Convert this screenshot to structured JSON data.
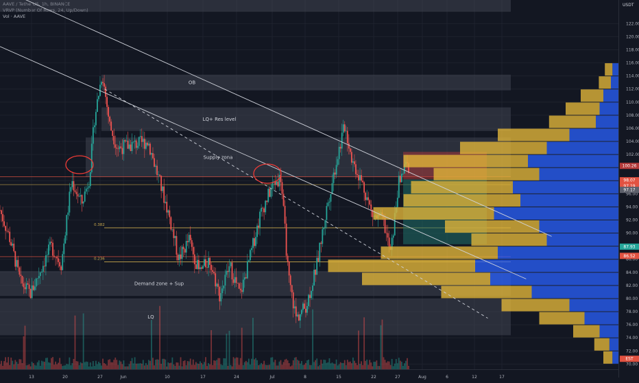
{
  "header": {
    "symbol_line": "AAVE / TetherUS, 1h, BINANCE",
    "indicator_1": "VRVP (Number Of Rows, 24, Up/Down)",
    "indicator_2": "Vol · AAVE"
  },
  "price_axis": {
    "currency": "USDT",
    "badges": [
      {
        "label": "100.26",
        "price": 100.26,
        "color": "#b33a3a"
      },
      {
        "label": "98.07",
        "price": 98.07,
        "color": "#e15241"
      },
      {
        "label": "97.19",
        "price": 97.19,
        "color": "#e15241"
      },
      {
        "label": "97.17",
        "price": 96.6,
        "color": "#5d606b"
      },
      {
        "label": "87.93",
        "price": 87.93,
        "color": "#26a69a"
      },
      {
        "label": "86.52",
        "price": 86.52,
        "color": "#e15241"
      },
      {
        "label": "EST",
        "price": 70.8,
        "color": "#e15241"
      }
    ]
  },
  "chart_data": {
    "type": "candlestick",
    "price_ticks": [
      70,
      72,
      74,
      76,
      78,
      80,
      82,
      84,
      86,
      88,
      90,
      92,
      94,
      96,
      98,
      100,
      102,
      104,
      106,
      108,
      110,
      112,
      114,
      116,
      118,
      120,
      122
    ],
    "ylim": [
      69.2,
      125.6
    ],
    "time_ticks": [
      "13",
      "20",
      "27",
      "Jun",
      "10",
      "17",
      "24",
      "Jul",
      "8",
      "15",
      "22",
      "27",
      "Aug",
      "6",
      "12",
      "17"
    ],
    "zones": [
      {
        "label": "",
        "top": 125.6,
        "bottom": 123.8
      },
      {
        "label": "OB",
        "top": 114.2,
        "bottom": 111.8
      },
      {
        "label": "LQ+ Res level",
        "top": 109.2,
        "bottom": 105.6
      },
      {
        "label": "Supply zona",
        "top": 104.6,
        "bottom": 98.6
      },
      {
        "label": "Demand zone + Sup",
        "top": 84.2,
        "bottom": 80.4
      },
      {
        "label": "LQ",
        "top": 80.0,
        "bottom": 74.4
      }
    ],
    "fib_levels": [
      {
        "label": "0.382",
        "price": 90.8
      },
      {
        "label": "0.236",
        "price": 85.6
      }
    ],
    "horizontal_lines": [
      {
        "price": 98.6,
        "color": "#e15241"
      },
      {
        "price": 97.4,
        "color": "#c9a84c"
      },
      {
        "price": 86.4,
        "color": "#e15241"
      }
    ],
    "price_series": [
      {
        "t": 0.0,
        "p": 93.5
      },
      {
        "t": 0.02,
        "p": 89.0
      },
      {
        "t": 0.04,
        "p": 82.5
      },
      {
        "t": 0.06,
        "p": 80.8
      },
      {
        "t": 0.08,
        "p": 84.5
      },
      {
        "t": 0.1,
        "p": 88.0
      },
      {
        "t": 0.12,
        "p": 85.2
      },
      {
        "t": 0.14,
        "p": 98.0
      },
      {
        "t": 0.16,
        "p": 94.5
      },
      {
        "t": 0.175,
        "p": 98.5
      },
      {
        "t": 0.185,
        "p": 107.5
      },
      {
        "t": 0.2,
        "p": 114.5
      },
      {
        "t": 0.215,
        "p": 106.5
      },
      {
        "t": 0.23,
        "p": 103.0
      },
      {
        "t": 0.26,
        "p": 103.5
      },
      {
        "t": 0.29,
        "p": 104.0
      },
      {
        "t": 0.31,
        "p": 98.5
      },
      {
        "t": 0.33,
        "p": 93.0
      },
      {
        "t": 0.35,
        "p": 86.0
      },
      {
        "t": 0.37,
        "p": 89.0
      },
      {
        "t": 0.39,
        "p": 84.0
      },
      {
        "t": 0.41,
        "p": 86.0
      },
      {
        "t": 0.43,
        "p": 80.5
      },
      {
        "t": 0.45,
        "p": 85.0
      },
      {
        "t": 0.47,
        "p": 80.5
      },
      {
        "t": 0.49,
        "p": 86.5
      },
      {
        "t": 0.51,
        "p": 93.0
      },
      {
        "t": 0.535,
        "p": 97.5
      },
      {
        "t": 0.55,
        "p": 98.5
      },
      {
        "t": 0.565,
        "p": 83.0
      },
      {
        "t": 0.58,
        "p": 77.0
      },
      {
        "t": 0.6,
        "p": 79.0
      },
      {
        "t": 0.62,
        "p": 85.0
      },
      {
        "t": 0.64,
        "p": 94.0
      },
      {
        "t": 0.66,
        "p": 101.5
      },
      {
        "t": 0.675,
        "p": 106.5
      },
      {
        "t": 0.69,
        "p": 101.0
      },
      {
        "t": 0.71,
        "p": 97.5
      },
      {
        "t": 0.73,
        "p": 92.5
      },
      {
        "t": 0.75,
        "p": 92.0
      },
      {
        "t": 0.765,
        "p": 86.8
      },
      {
        "t": 0.78,
        "p": 97.5
      },
      {
        "t": 0.795,
        "p": 101.0
      },
      {
        "t": 0.8,
        "p": 99.0
      }
    ],
    "trendlines": [
      {
        "x1": 0.0,
        "y1": 118.5,
        "x2": 1.03,
        "y2": 83.0,
        "dashed": false
      },
      {
        "x1": 0.04,
        "y1": 126.0,
        "x2": 1.08,
        "y2": 89.5,
        "dashed": false
      },
      {
        "x1": 0.205,
        "y1": 112.0,
        "x2": 0.955,
        "y2": 77.0,
        "dashed": true
      }
    ],
    "volume_profile": [
      {
        "price": 115.0,
        "up": 0.01,
        "down": 0.008
      },
      {
        "price": 113.0,
        "up": 0.016,
        "down": 0.01
      },
      {
        "price": 111.0,
        "up": 0.03,
        "down": 0.02
      },
      {
        "price": 109.0,
        "up": 0.045,
        "down": 0.025
      },
      {
        "price": 107.0,
        "up": 0.062,
        "down": 0.03
      },
      {
        "price": 105.0,
        "up": 0.095,
        "down": 0.065
      },
      {
        "price": 103.0,
        "up": 0.115,
        "down": 0.095
      },
      {
        "price": 101.0,
        "up": 0.165,
        "down": 0.12
      },
      {
        "price": 99.0,
        "up": 0.14,
        "down": 0.105
      },
      {
        "price": 97.0,
        "up": 0.135,
        "down": 0.14
      },
      {
        "price": 95.0,
        "up": 0.155,
        "down": 0.13
      },
      {
        "price": 93.0,
        "up": 0.16,
        "down": 0.165
      },
      {
        "price": 91.0,
        "up": 0.125,
        "down": 0.105
      },
      {
        "price": 89.0,
        "up": 0.1,
        "down": 0.095
      },
      {
        "price": 87.0,
        "up": 0.155,
        "down": 0.16
      },
      {
        "price": 85.0,
        "up": 0.195,
        "down": 0.19
      },
      {
        "price": 83.0,
        "up": 0.17,
        "down": 0.17
      },
      {
        "price": 81.0,
        "up": 0.12,
        "down": 0.115
      },
      {
        "price": 79.0,
        "up": 0.09,
        "down": 0.065
      },
      {
        "price": 77.0,
        "up": 0.06,
        "down": 0.045
      },
      {
        "price": 75.0,
        "up": 0.035,
        "down": 0.025
      },
      {
        "price": 73.0,
        "up": 0.02,
        "down": 0.012
      },
      {
        "price": 71.0,
        "up": 0.012,
        "down": 0.008
      }
    ]
  }
}
